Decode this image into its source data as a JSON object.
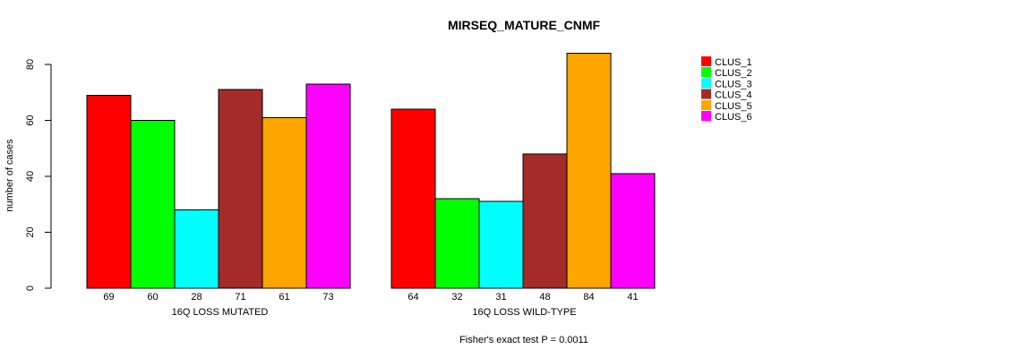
{
  "title": "MIRSEQ_MATURE_CNMF",
  "footnote": "Fisher's exact test P = 0.0011",
  "chart_data": {
    "type": "bar",
    "title": "MIRSEQ_MATURE_CNMF",
    "subtitle": "Fisher's exact test P = 0.0011",
    "xlabel": "",
    "ylabel": "number of cases",
    "ylim": [
      0,
      80
    ],
    "yticks": [
      0,
      20,
      40,
      60,
      80
    ],
    "grid": false,
    "legend_position": "top-right",
    "bar_value_labels_shown": true,
    "legend": [
      "CLUS_1",
      "CLUS_2",
      "CLUS_3",
      "CLUS_4",
      "CLUS_5",
      "CLUS_6"
    ],
    "series_colors": [
      "#FF0000",
      "#00FF00",
      "#00FFFF",
      "#A52A2A",
      "#FFA500",
      "#FF00FF"
    ],
    "groups": [
      {
        "label": "16Q LOSS MUTATED",
        "values": [
          69,
          60,
          28,
          71,
          61,
          73
        ]
      },
      {
        "label": "16Q LOSS WILD-TYPE",
        "values": [
          64,
          32,
          31,
          48,
          84,
          41
        ]
      }
    ]
  }
}
